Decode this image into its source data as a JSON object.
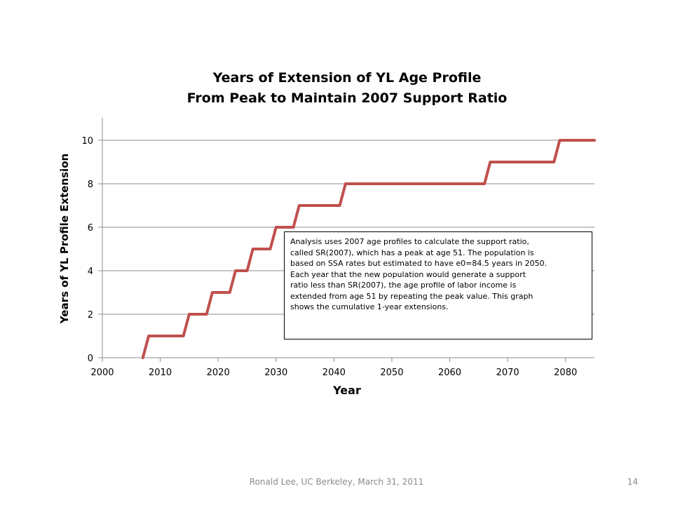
{
  "slide": {
    "footer": "Ronald Lee, UC Berkeley, March 31, 2011",
    "page_number": "14"
  },
  "chart_data": {
    "type": "line",
    "title": [
      "Years of Extension of YL Age Profile",
      "From Peak to Maintain 2007 Support Ratio"
    ],
    "xlabel": "Year",
    "ylabel": "Years of YL Profile Extension",
    "xlim": [
      2000,
      2085
    ],
    "ylim": [
      0,
      11
    ],
    "x_ticks": [
      2000,
      2010,
      2020,
      2030,
      2040,
      2050,
      2060,
      2070,
      2080
    ],
    "y_ticks": [
      0,
      2,
      4,
      6,
      8,
      10
    ],
    "grid": "horizontal",
    "legend": "none",
    "series_color": "#c0504d",
    "series": [
      {
        "x": [
          2007,
          2008,
          2014,
          2015,
          2018,
          2019,
          2022,
          2023,
          2025,
          2026,
          2029,
          2030,
          2033,
          2034,
          2041,
          2042,
          2066,
          2067,
          2078,
          2079,
          2085
        ],
        "y": [
          0,
          1,
          1,
          2,
          2,
          3,
          3,
          4,
          4,
          5,
          5,
          6,
          6,
          7,
          7,
          8,
          8,
          9,
          9,
          10,
          10
        ]
      }
    ],
    "annotation": [
      "Analysis uses 2007 age profiles to calculate the support ratio,",
      "called SR(2007), which has a peak at age 51.  The population is",
      "based on SSA rates but estimated to have e0=84.5 years in 2050.",
      "Each year that the new population would generate a support",
      "ratio less than SR(2007), the age profile of labor income is",
      "extended from age 51 by repeating the peak value.  This graph",
      "shows the cumulative 1-year extensions."
    ]
  }
}
